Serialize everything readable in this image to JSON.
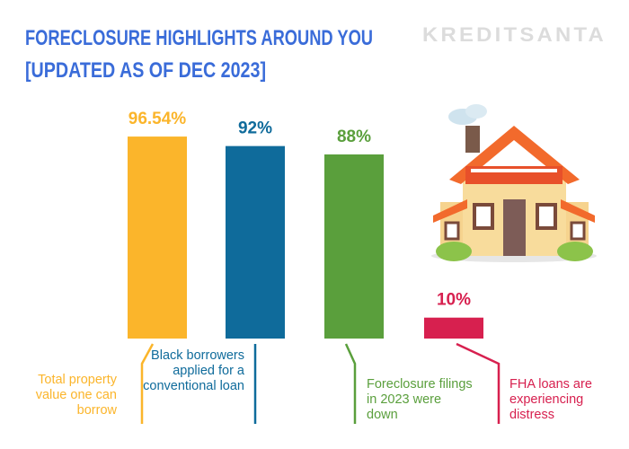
{
  "chart_data": {
    "type": "bar",
    "title": [
      "FORECLOSURE HIGHLIGHTS AROUND YOU",
      "[UPDATED AS OF DEC 2023]"
    ],
    "logo": "KREDITSANTA",
    "categories": [
      "Total property value one can borrow",
      "Black borrowers applied for a conventional loan",
      "Foreclosure filings in 2023 were down",
      "FHA loans are experiencing distress"
    ],
    "values": [
      96.54,
      92,
      88,
      10
    ],
    "value_labels": [
      "96.54%",
      "92%",
      "88%",
      "10%"
    ],
    "colors": [
      "#fbb52b",
      "#0f6b9b",
      "#5a9f3c",
      "#d7204f"
    ]
  }
}
